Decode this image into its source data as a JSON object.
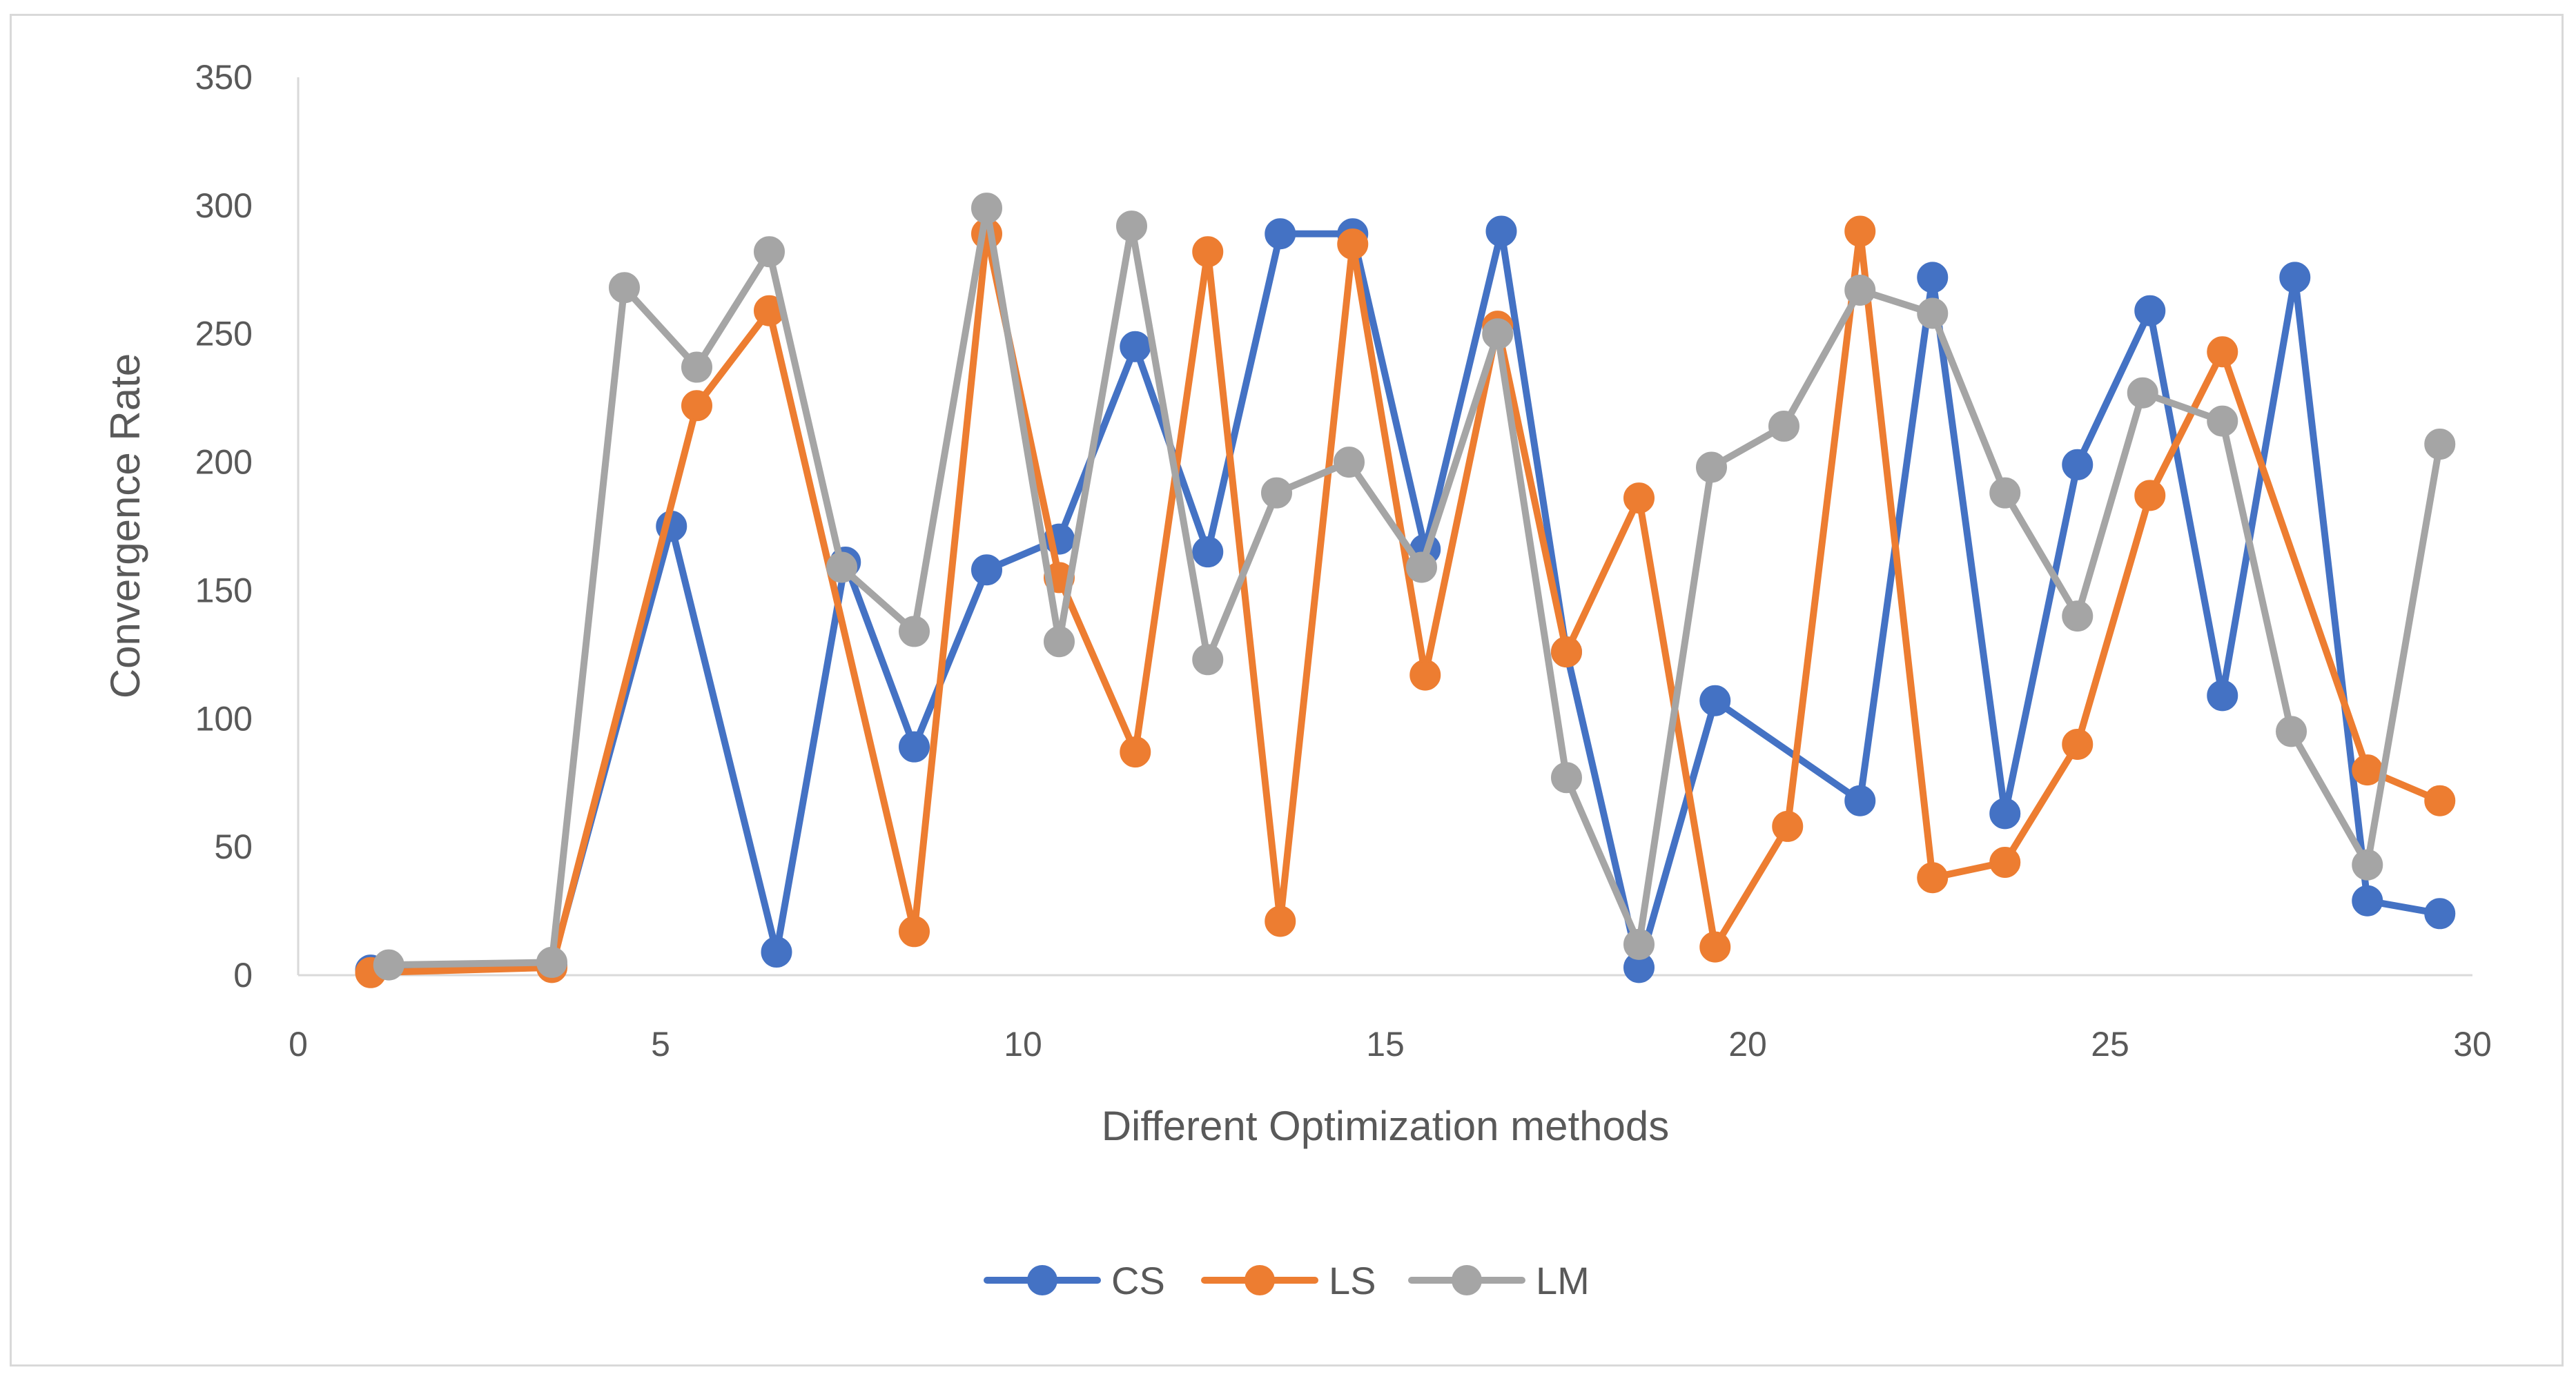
{
  "chart_data": {
    "type": "line",
    "title": "",
    "xlabel": "Different Optimization methods",
    "ylabel": "Convergence Rate",
    "xlim": [
      0,
      30
    ],
    "ylim": [
      0,
      350
    ],
    "xticks": [
      0,
      5,
      10,
      15,
      20,
      25,
      30
    ],
    "yticks": [
      0,
      50,
      100,
      150,
      200,
      250,
      300,
      350
    ],
    "legend_position": "bottom",
    "grid": false,
    "series": [
      {
        "name": "CS",
        "color": "#4472c4",
        "x": [
          1,
          3.5,
          5.15,
          6.6,
          7.55,
          8.5,
          9.5,
          10.5,
          11.55,
          12.55,
          13.55,
          14.55,
          15.55,
          16.6,
          17.5,
          18.5,
          19.55,
          21.55,
          22.55,
          23.55,
          24.55,
          25.55,
          26.55,
          27.55,
          28.55,
          29.55
        ],
        "y": [
          2,
          4,
          175,
          9,
          161,
          89,
          158,
          170,
          245,
          165,
          289,
          289,
          166,
          290,
          126,
          3,
          107,
          68,
          272,
          63,
          199,
          259,
          109,
          272,
          29,
          24
        ]
      },
      {
        "name": "LS",
        "color": "#ed7d31",
        "x": [
          1,
          3.5,
          5.5,
          6.5,
          8.5,
          9.5,
          10.5,
          11.55,
          12.55,
          13.55,
          14.55,
          15.55,
          16.55,
          17.5,
          18.5,
          19.55,
          20.55,
          21.55,
          22.55,
          23.55,
          24.55,
          25.55,
          26.55,
          28.55,
          29.55
        ],
        "y": [
          1,
          3,
          222,
          259,
          17,
          289,
          155,
          87,
          282,
          21,
          285,
          117,
          253,
          126,
          186,
          11,
          58,
          290,
          38,
          44,
          90,
          187,
          243,
          80,
          68
        ]
      },
      {
        "name": "LM",
        "color": "#a5a5a5",
        "x": [
          1.25,
          3.5,
          4.5,
          5.5,
          6.5,
          7.5,
          8.5,
          9.5,
          10.5,
          11.5,
          12.55,
          13.5,
          14.5,
          15.5,
          16.55,
          17.5,
          18.5,
          19.5,
          20.5,
          21.55,
          22.55,
          23.55,
          24.55,
          25.45,
          26.55,
          27.5,
          28.55,
          29.55
        ],
        "y": [
          4,
          5,
          268,
          237,
          282,
          159,
          134,
          299,
          130,
          292,
          123,
          188,
          200,
          159,
          250,
          77,
          12,
          198,
          214,
          267,
          258,
          188,
          140,
          227,
          216,
          95,
          43,
          207
        ]
      }
    ]
  }
}
